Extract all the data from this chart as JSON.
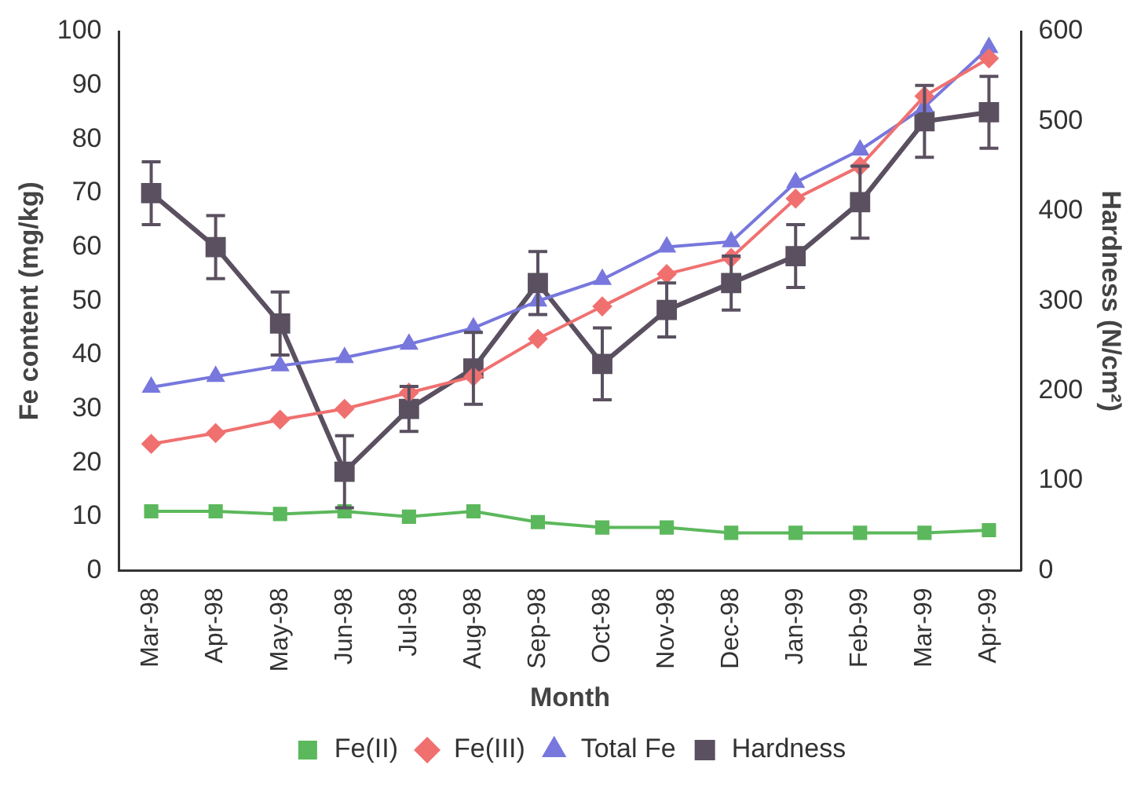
{
  "chart_data": {
    "type": "line",
    "xlabel": "Month",
    "ylabel": "Fe content (mg/kg)",
    "y2label": "Hardness (N/cm²)",
    "categories": [
      "Mar-98",
      "Apr-98",
      "May-98",
      "Jun-98",
      "Jul-98",
      "Aug-98",
      "Sep-98",
      "Oct-98",
      "Nov-98",
      "Dec-98",
      "Jan-99",
      "Feb-99",
      "Mar-99",
      "Apr-99"
    ],
    "series": [
      {
        "name": "Fe(II)",
        "color": "#5cb85c",
        "marker": "square",
        "values": [
          11,
          11,
          10.5,
          11,
          10,
          11,
          9,
          8,
          8,
          7,
          7,
          7,
          7,
          7.5
        ]
      },
      {
        "name": "Fe(III)",
        "color": "#f07070",
        "marker": "diamond",
        "values": [
          23.5,
          25.5,
          28,
          30,
          33,
          36,
          43,
          49,
          55,
          58,
          69,
          75,
          88,
          95
        ]
      },
      {
        "name": "Total Fe",
        "color": "#7777dd",
        "marker": "triangle",
        "values": [
          34,
          36,
          38,
          39.5,
          42,
          45,
          50,
          54,
          60,
          61,
          72,
          78,
          86,
          97
        ]
      },
      {
        "name": "Hardness",
        "color": "#5a5060",
        "marker": "square",
        "axis": "y2",
        "values": [
          420,
          360,
          275,
          110,
          180,
          225,
          320,
          230,
          290,
          320,
          350,
          410,
          500,
          510
        ],
        "errors": [
          35,
          35,
          35,
          40,
          25,
          40,
          35,
          40,
          30,
          30,
          35,
          40,
          40,
          40
        ]
      }
    ],
    "ylim": [
      0,
      100
    ],
    "yticks": [
      0,
      10,
      20,
      30,
      40,
      50,
      60,
      70,
      80,
      90,
      100
    ],
    "y2lim": [
      0,
      600
    ],
    "y2ticks": [
      0,
      100,
      200,
      300,
      400,
      500,
      600
    ],
    "grid": false,
    "legend": "bottom"
  }
}
